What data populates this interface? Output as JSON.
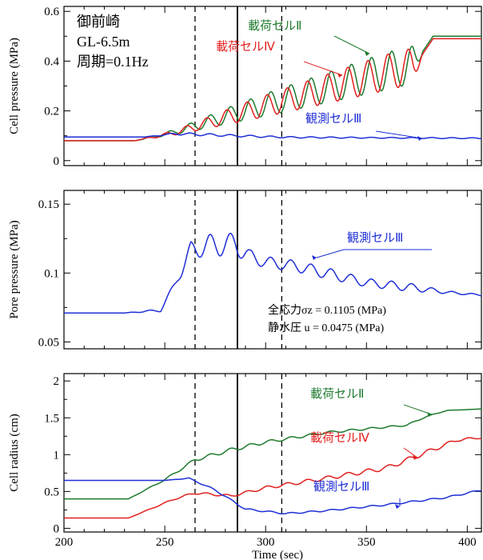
{
  "chart_data": [
    {
      "type": "line",
      "panel": "cell-pressure",
      "ylabel": "Cell pressure (MPa)",
      "xlim": [
        200,
        407
      ],
      "ylim": [
        -0.02,
        0.62
      ],
      "yticks": [
        0,
        0.2,
        0.4,
        0.6
      ],
      "ytick_labels": [
        "0",
        "0.2",
        "0.4",
        "0.6"
      ],
      "info_lines": [
        "御前崎",
        "GL-6.5m",
        "周期=0.1Hz"
      ],
      "series": [
        {
          "name": "載荷セルⅡ",
          "color": "#1e7a2e",
          "x": [
            200,
            235,
            255,
            285,
            300,
            320,
            340,
            360,
            373,
            378,
            383,
            407
          ],
          "y": [
            0.08,
            0.08,
            0.115,
            0.19,
            0.225,
            0.27,
            0.315,
            0.36,
            0.385,
            0.44,
            0.5,
            0.5
          ],
          "amp": [
            0,
            0,
            0.01,
            0.035,
            0.045,
            0.055,
            0.065,
            0.075,
            0.075,
            0,
            0,
            0
          ]
        },
        {
          "name": "載荷セルⅣ",
          "color": "#e0201e",
          "x": [
            200,
            235,
            255,
            285,
            300,
            320,
            340,
            360,
            373,
            378,
            383,
            407
          ],
          "y": [
            0.08,
            0.08,
            0.112,
            0.185,
            0.22,
            0.265,
            0.31,
            0.355,
            0.38,
            0.43,
            0.49,
            0.49
          ],
          "amp": [
            0,
            0,
            0.009,
            0.033,
            0.043,
            0.053,
            0.063,
            0.072,
            0.072,
            0,
            0,
            0
          ]
        },
        {
          "name": "観測セルⅢ",
          "color": "#1f2fd6",
          "x": [
            200,
            240,
            255,
            265,
            285,
            310,
            350,
            407
          ],
          "y": [
            0.095,
            0.095,
            0.108,
            0.106,
            0.1,
            0.094,
            0.092,
            0.09
          ],
          "amp": [
            0,
            0,
            0.004,
            0.005,
            0.004,
            0.003,
            0.002,
            0.002
          ]
        }
      ]
    },
    {
      "type": "line",
      "panel": "pore-pressure",
      "ylabel": "Pore pressure (MPa)",
      "xlim": [
        200,
        407
      ],
      "ylim": [
        0.045,
        0.16
      ],
      "yticks": [
        0.05,
        0.1,
        0.15
      ],
      "ytick_labels": [
        "0.05",
        "0.1",
        "0.15"
      ],
      "notes": [
        "全応力σz = 0.1105 (MPa)",
        "静水圧 u = 0.0475 (MPa)"
      ],
      "series": [
        {
          "name": "観測セルⅢ",
          "color": "#1f2fd6",
          "x": [
            200,
            230,
            248,
            256,
            258,
            263,
            272,
            285,
            292,
            300,
            315,
            330,
            350,
            370,
            390,
            407
          ],
          "y": [
            0.071,
            0.071,
            0.073,
            0.095,
            0.1,
            0.117,
            0.12,
            0.121,
            0.112,
            0.108,
            0.105,
            0.1,
            0.093,
            0.09,
            0.086,
            0.084
          ],
          "amp": [
            0,
            0,
            0.001,
            0.002,
            0.003,
            0.006,
            0.008,
            0.008,
            0.005,
            0.004,
            0.004,
            0.004,
            0.003,
            0.003,
            0.001,
            0.0005
          ]
        }
      ]
    },
    {
      "type": "line",
      "panel": "cell-radius",
      "ylabel": "Cell radius (cm)",
      "xlabel": "Time (sec)",
      "xlim": [
        200,
        407
      ],
      "ylim": [
        -0.05,
        2.1
      ],
      "xticks": [
        200,
        250,
        300,
        350,
        400
      ],
      "xtick_labels": [
        "200",
        "250",
        "300",
        "350",
        "400"
      ],
      "yticks": [
        0,
        0.5,
        1,
        1.5,
        2
      ],
      "ytick_labels": [
        "0",
        "0.5",
        "1",
        "1.5",
        "2"
      ],
      "series": [
        {
          "name": "載荷セルⅡ",
          "color": "#1e7a2e",
          "x": [
            200,
            232,
            250,
            265,
            285,
            300,
            330,
            370,
            380,
            390,
            407
          ],
          "y": [
            0.4,
            0.4,
            0.66,
            0.93,
            1.08,
            1.17,
            1.3,
            1.4,
            1.52,
            1.6,
            1.62
          ],
          "amp": [
            0,
            0,
            0.01,
            0.02,
            0.025,
            0.02,
            0.015,
            0.01,
            0.005,
            0.002,
            0
          ]
        },
        {
          "name": "載荷セルⅣ",
          "color": "#e0201e",
          "x": [
            200,
            232,
            255,
            265,
            283,
            300,
            330,
            360,
            375,
            395,
            407
          ],
          "y": [
            0.14,
            0.14,
            0.4,
            0.48,
            0.44,
            0.55,
            0.68,
            0.82,
            0.98,
            1.2,
            1.23
          ],
          "amp": [
            0,
            0,
            0.01,
            0.015,
            0.015,
            0.02,
            0.025,
            0.03,
            0.03,
            0.02,
            0.01
          ]
        },
        {
          "name": "観測セルⅢ",
          "color": "#1f2fd6",
          "x": [
            200,
            250,
            262,
            275,
            290,
            310,
            330,
            360,
            390,
            407
          ],
          "y": [
            0.65,
            0.65,
            0.68,
            0.52,
            0.26,
            0.2,
            0.24,
            0.32,
            0.42,
            0.52
          ],
          "amp": [
            0,
            0,
            0.005,
            0.01,
            0.01,
            0.01,
            0.01,
            0.01,
            0.01,
            0.01
          ]
        }
      ]
    }
  ],
  "events": {
    "dashed_times": [
      265,
      308
    ],
    "solid_time": 286
  }
}
